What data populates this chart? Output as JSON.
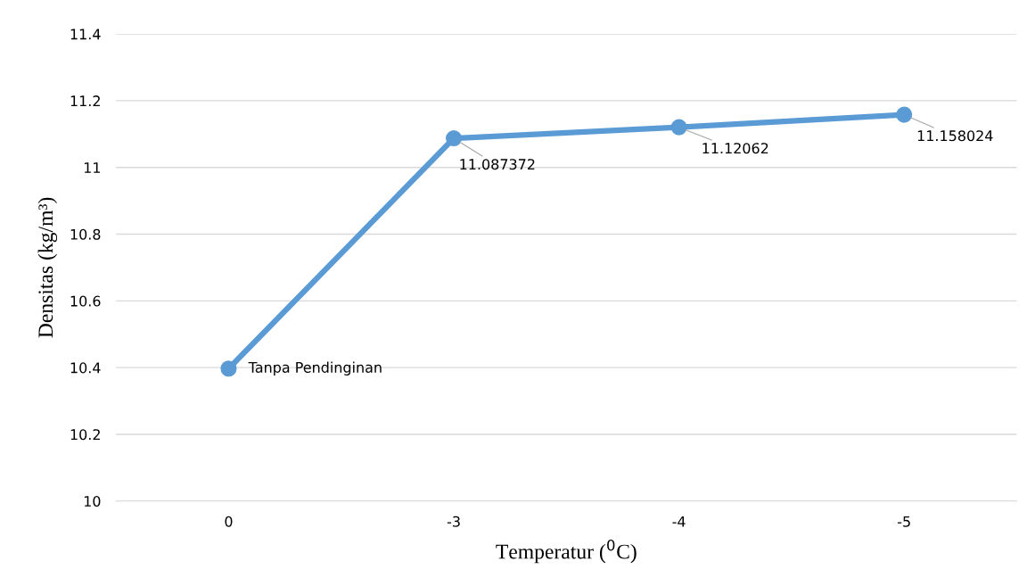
{
  "chart_data": {
    "type": "line",
    "xlabel": "Temperatur ($^{0}$C)",
    "ylabel": "Densitas (kg/m³)",
    "categories": [
      "0",
      "-3",
      "-4",
      "-5"
    ],
    "series": [
      {
        "color": "#5b9bd5",
        "values": [
          10.397,
          11.087372,
          11.12062,
          11.158024
        ],
        "value_labels": [
          "Tanpa Pendinginan",
          "11.087372",
          "11.12062",
          "11.158024"
        ]
      }
    ],
    "ylim": [
      10,
      11.4
    ],
    "yticks": [
      10,
      10.2,
      10.4,
      10.6,
      10.8,
      11,
      11.2,
      11.4
    ],
    "grid": "y",
    "marker": "circle",
    "line_style": "solid"
  }
}
